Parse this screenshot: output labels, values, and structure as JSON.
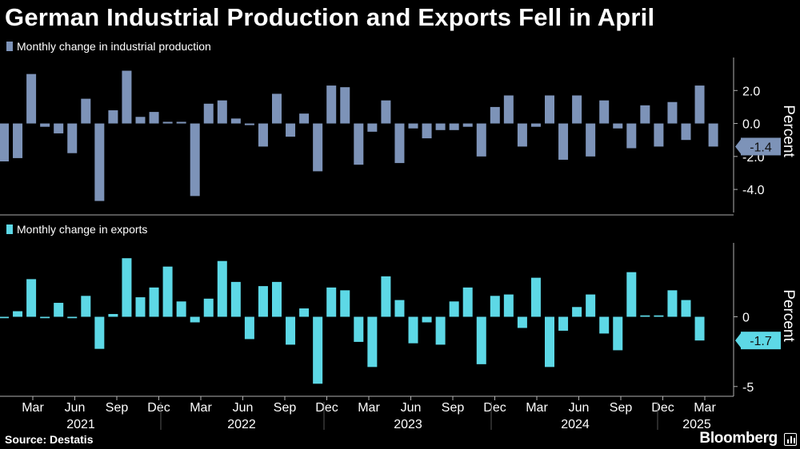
{
  "title": "German Industrial Production and Exports Fell in April",
  "source": "Source: Destatis",
  "brand": "Bloomberg",
  "colors": {
    "production": "#7d93b8",
    "exports": "#5dd8e6",
    "axis": "#b0b0b0",
    "divider": "#555555"
  },
  "chart_data": [
    {
      "type": "bar",
      "title": "",
      "legend": "Monthly change in industrial production",
      "ylabel": "Percent",
      "ylim": [
        -5.4,
        4.0
      ],
      "yticks": [
        "2.0",
        "0.0",
        "-2.0",
        "-4.0"
      ],
      "ytick_values": [
        2.0,
        0.0,
        -2.0,
        -4.0
      ],
      "last_value_label": "-1.4",
      "series": [
        {
          "name": "Monthly change in industrial production",
          "values": [
            -2.3,
            -2.1,
            3.0,
            -0.2,
            -0.6,
            -1.8,
            1.5,
            -4.7,
            0.8,
            3.2,
            0.4,
            0.7,
            0.1,
            0.1,
            -4.4,
            1.2,
            1.4,
            0.3,
            -0.1,
            -1.4,
            1.8,
            -0.8,
            0.6,
            -2.9,
            2.3,
            2.2,
            -2.5,
            -0.5,
            1.4,
            -2.4,
            -0.3,
            -0.9,
            -0.4,
            -0.4,
            -0.2,
            -2.0,
            1.0,
            1.7,
            -1.4,
            -0.2,
            1.7,
            -2.2,
            1.7,
            -2.0,
            1.4,
            -0.3,
            -1.5,
            1.1,
            -1.4,
            1.3,
            -1.0,
            2.3,
            -1.4
          ]
        }
      ]
    },
    {
      "type": "bar",
      "title": "",
      "legend": "Monthly change in exports",
      "ylabel": "Percent",
      "ylim": [
        -5.7,
        5.3
      ],
      "yticks": [
        "0",
        "-5"
      ],
      "ytick_values": [
        0,
        -5
      ],
      "last_value_label": "-1.7",
      "series": [
        {
          "name": "Monthly change in exports",
          "values": [
            -0.1,
            0.4,
            2.7,
            -0.1,
            1.0,
            -0.1,
            1.5,
            -2.3,
            0.2,
            4.2,
            1.4,
            2.1,
            3.6,
            1.1,
            -0.4,
            1.3,
            4.0,
            2.5,
            -1.6,
            2.2,
            2.5,
            -2.0,
            0.6,
            -4.8,
            2.1,
            1.9,
            -1.8,
            -3.6,
            2.9,
            1.2,
            -1.9,
            -0.4,
            -2.0,
            1.1,
            2.1,
            -3.4,
            1.5,
            1.6,
            -0.8,
            2.8,
            -3.6,
            -1.0,
            0.7,
            1.6,
            -1.2,
            -2.4,
            3.2,
            0.1,
            0.1,
            1.9,
            1.2,
            -1.7
          ]
        }
      ],
      "xtick_labels": [
        "Mar",
        "Jun",
        "Sep",
        "Dec",
        "Mar",
        "Jun",
        "Sep",
        "Dec",
        "Mar",
        "Jun",
        "Sep",
        "Dec",
        "Mar",
        "Jun",
        "Sep",
        "Dec",
        "Mar"
      ],
      "year_labels": [
        "2021",
        "2022",
        "2023",
        "2024",
        "2025"
      ]
    }
  ]
}
